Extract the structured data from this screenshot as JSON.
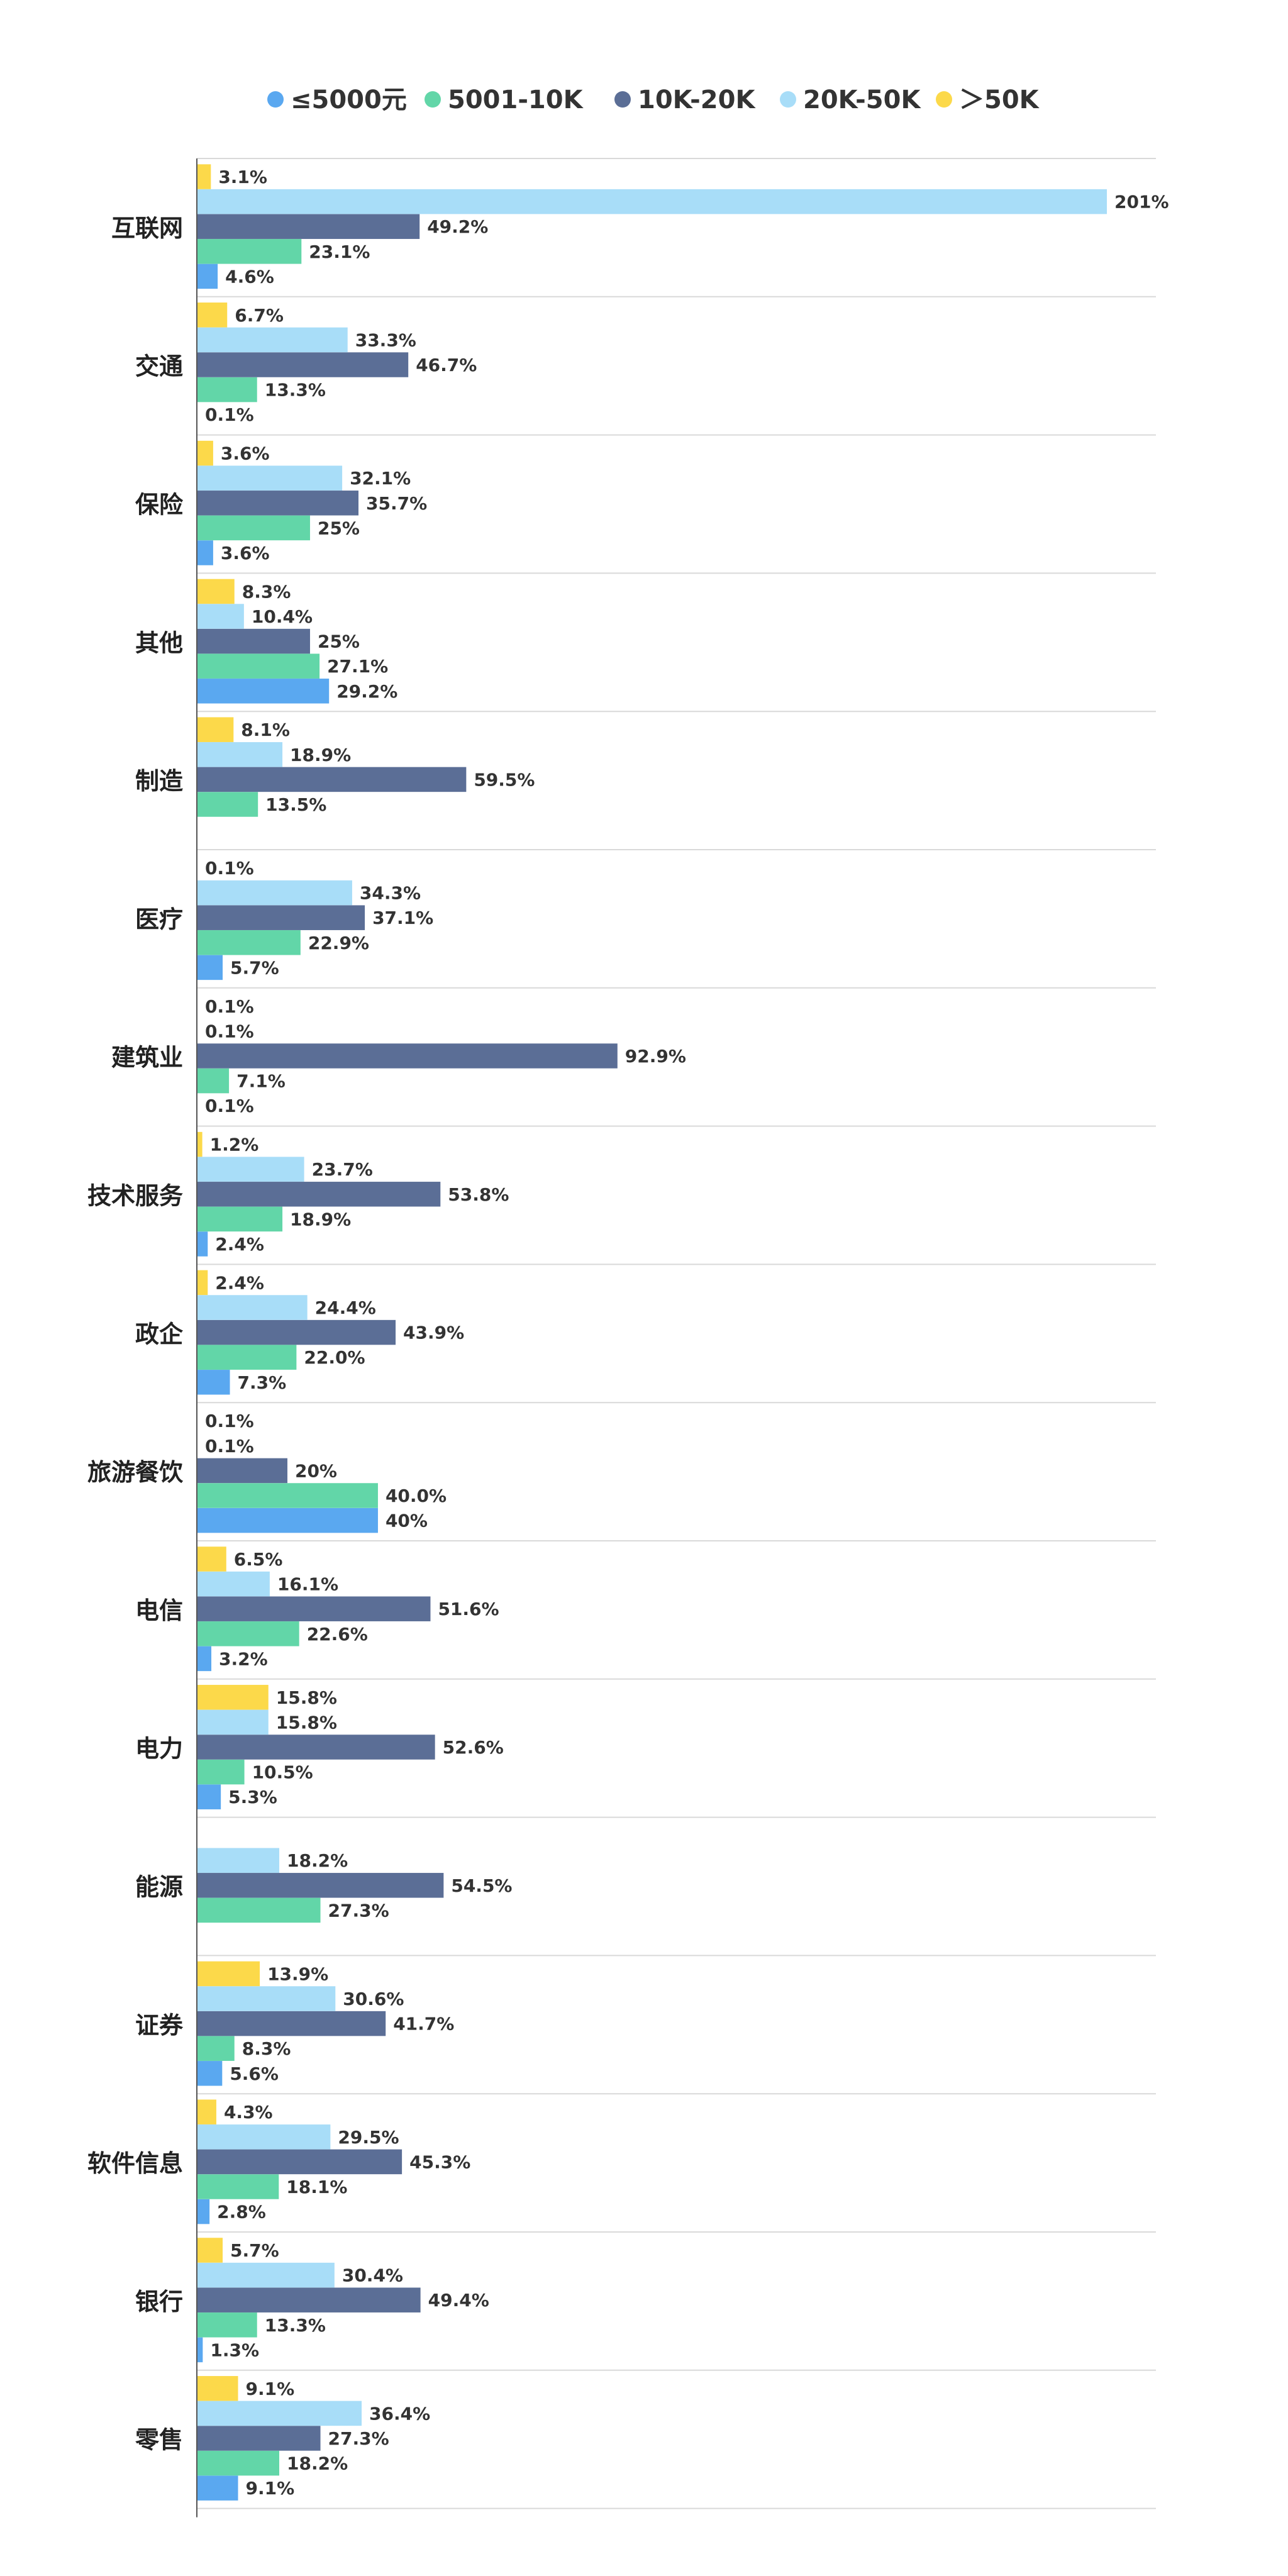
{
  "chart_data": {
    "type": "bar",
    "orientation": "horizontal",
    "legend_position": "top-center",
    "grid": false,
    "xlim": [
      0,
      210
    ],
    "categories": [
      "互联网",
      "交通",
      "保险",
      "其他",
      "制造",
      "医疗",
      "建筑业",
      "技术服务",
      "政企",
      "旅游餐饮",
      "电信",
      "电力",
      "能源",
      "证券",
      "软件信息",
      "银行",
      "零售"
    ],
    "series": [
      {
        "name": "≤5000元",
        "color": "#5aa8f0",
        "values": [
          4.6,
          0.1,
          3.6,
          29.2,
          null,
          5.7,
          0.1,
          2.4,
          7.3,
          40,
          3.2,
          5.3,
          null,
          5.6,
          2.8,
          1.3,
          9.1
        ],
        "labels": [
          "4.6%",
          "0.1%",
          "3.6%",
          "29.2%",
          null,
          "5.7%",
          "0.1%",
          "2.4%",
          "7.3%",
          "40%",
          "3.2%",
          "5.3%",
          null,
          "5.6%",
          "2.8%",
          "1.3%",
          "9.1%"
        ]
      },
      {
        "name": "5001-10K",
        "color": "#62d6a8",
        "values": [
          23.1,
          13.3,
          25,
          27.1,
          13.5,
          22.9,
          7.1,
          18.9,
          22.0,
          40.0,
          22.6,
          10.5,
          27.3,
          8.3,
          18.1,
          13.3,
          18.2
        ],
        "labels": [
          "23.1%",
          "13.3%",
          "25%",
          "27.1%",
          "13.5%",
          "22.9%",
          "7.1%",
          "18.9%",
          "22.0%",
          "40.0%",
          "22.6%",
          "10.5%",
          "27.3%",
          "8.3%",
          "18.1%",
          "13.3%",
          "18.2%"
        ]
      },
      {
        "name": "10K-20K",
        "color": "#5b6e96",
        "values": [
          49.2,
          46.7,
          35.7,
          25,
          59.5,
          37.1,
          92.9,
          53.8,
          43.9,
          20,
          51.6,
          52.6,
          54.5,
          41.7,
          45.3,
          49.4,
          27.3
        ],
        "labels": [
          "49.2%",
          "46.7%",
          "35.7%",
          "25%",
          "59.5%",
          "37.1%",
          "92.9%",
          "53.8%",
          "43.9%",
          "20%",
          "51.6%",
          "52.6%",
          "54.5%",
          "41.7%",
          "45.3%",
          "49.4%",
          "27.3%"
        ]
      },
      {
        "name": "20K-50K",
        "color": "#a8ddf8",
        "values": [
          201,
          33.3,
          32.1,
          10.4,
          18.9,
          34.3,
          0.1,
          23.7,
          24.4,
          0.1,
          16.1,
          15.8,
          18.2,
          30.6,
          29.5,
          30.4,
          36.4
        ],
        "labels": [
          "201%",
          "33.3%",
          "32.1%",
          "10.4%",
          "18.9%",
          "34.3%",
          "0.1%",
          "23.7%",
          "24.4%",
          "0.1%",
          "16.1%",
          "15.8%",
          "18.2%",
          "30.6%",
          "29.5%",
          "30.4%",
          "36.4%"
        ]
      },
      {
        "name": "＞50K",
        "color": "#fcd94a",
        "values": [
          3.1,
          6.7,
          3.6,
          8.3,
          8.1,
          0.1,
          0.1,
          1.2,
          2.4,
          0.1,
          6.5,
          15.8,
          null,
          13.9,
          4.3,
          5.7,
          9.1
        ],
        "labels": [
          "3.1%",
          "6.7%",
          "3.6%",
          "8.3%",
          "8.1%",
          "0.1%",
          "0.1%",
          "1.2%",
          "2.4%",
          "0.1%",
          "6.5%",
          "15.8%",
          null,
          "13.9%",
          "4.3%",
          "5.7%",
          "9.1%"
        ]
      }
    ]
  }
}
